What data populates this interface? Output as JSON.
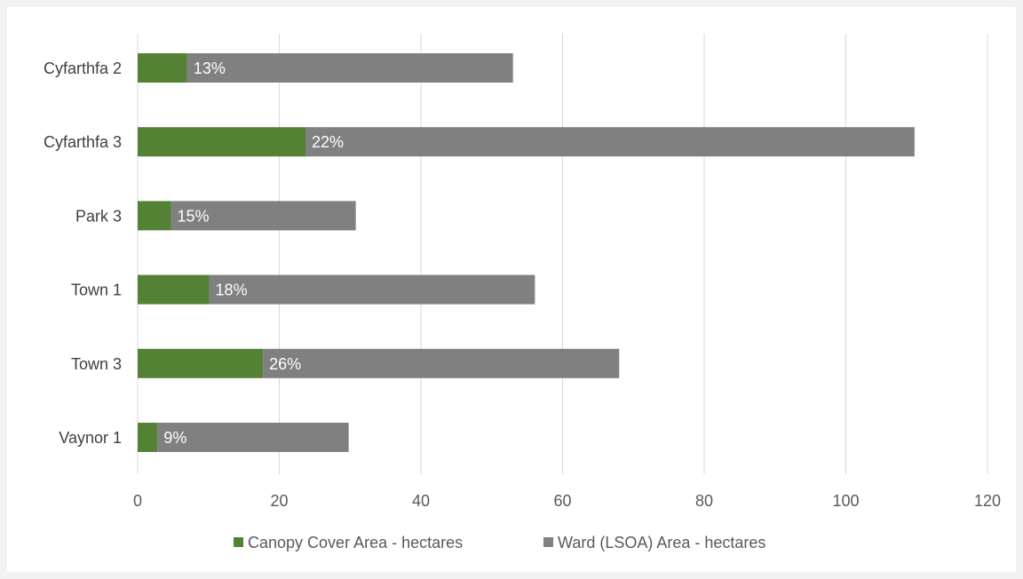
{
  "chart_data": {
    "type": "bar",
    "orientation": "horizontal",
    "stacked": true,
    "categories": [
      "Cyfarthfa 2",
      "Cyfarthfa 3",
      "Park 3",
      "Town 1",
      "Town 3",
      "Vaynor 1"
    ],
    "series": [
      {
        "name": "Canopy Cover Area - hectares",
        "color": "#548235",
        "values": [
          7,
          23.7,
          4.7,
          10.1,
          17.7,
          2.8
        ]
      },
      {
        "name": "Ward (LSOA) Area - hectares",
        "color": "#808080",
        "values": [
          46,
          86,
          26.1,
          46,
          50.3,
          27
        ]
      }
    ],
    "data_labels": [
      "13%",
      "22%",
      "15%",
      "18%",
      "26%",
      "9%"
    ],
    "xlim": [
      0,
      120
    ],
    "xticks": [
      0,
      20,
      40,
      60,
      80,
      100,
      120
    ],
    "grid": "vertical",
    "legend": "bottom",
    "title": "",
    "xlabel": "",
    "ylabel": ""
  }
}
